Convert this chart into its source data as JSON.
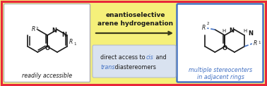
{
  "background_color": "#f5f07a",
  "outer_border_color": "#e8273a",
  "left_box_bg": "#ffffff",
  "left_box_border": "#b0b0b0",
  "right_box_bg": "#ffffff",
  "right_box_border": "#4472c4",
  "middle_label_bg": "#d9e2f0",
  "middle_label_border": "#b0b8c8",
  "arrow_color": "#3a3a1a",
  "title_text_line1": "enantioselective",
  "title_text_line2": "arene hydrogenation",
  "cis_text": "cis",
  "trans_text": "trans",
  "left_caption": "readily accessible",
  "right_caption_line1": "multiple stereocenters",
  "right_caption_line2": "in adjacent rings",
  "highlight_color": "#4472c4",
  "text_color": "#1a1a1a",
  "caption_color": "#4472c4",
  "bond_color": "#1a1a1a"
}
